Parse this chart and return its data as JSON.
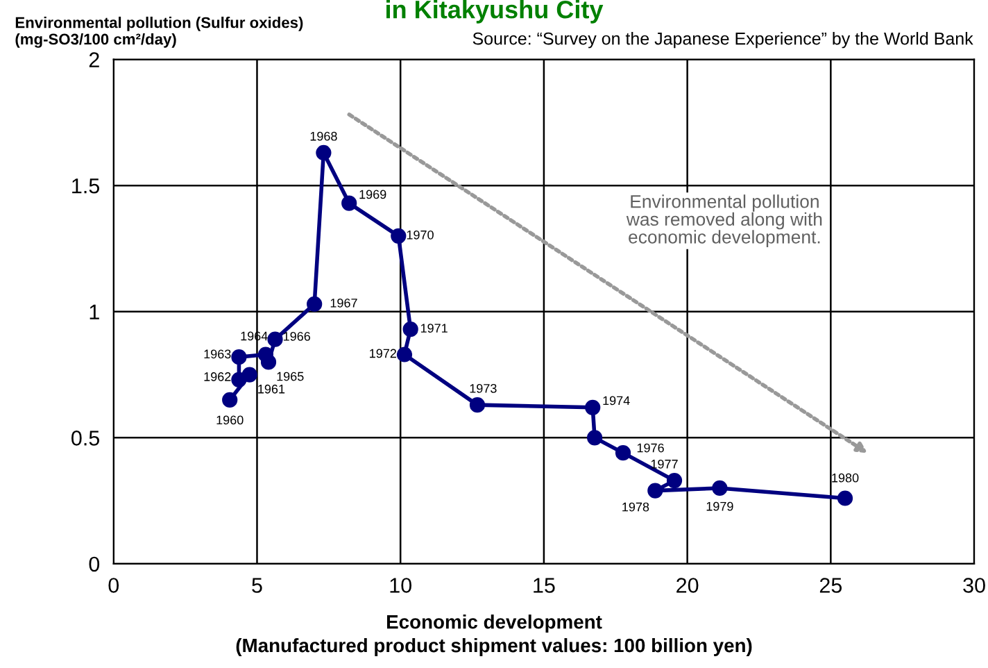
{
  "chart_data": {
    "type": "line",
    "title": "in Kitakyushu City",
    "ylabel": "Environmental pollution (Sulfur oxides)\n(mg-SO3/100 cm²/day)",
    "xlabel": "Economic development\n(Manufactured product shipment values: 100 billion yen)",
    "series": [
      {
        "color": "#000080",
        "x": [
          4.05,
          4.74,
          4.37,
          4.37,
          5.3,
          5.4,
          5.63,
          7.0,
          7.32,
          8.21,
          9.93,
          10.35,
          10.14,
          12.68,
          16.7,
          16.77,
          17.76,
          19.55,
          18.88,
          21.13,
          25.5
        ],
        "values": [
          0.65,
          0.75,
          0.73,
          0.82,
          0.83,
          0.8,
          0.89,
          1.03,
          1.63,
          1.43,
          1.3,
          0.93,
          0.83,
          0.63,
          0.62,
          0.5,
          0.44,
          0.33,
          0.29,
          0.3,
          0.26
        ]
      }
    ],
    "annotations": [
      "Source: “Survey on the Japanese Experience” by the World Bank",
      "Environmental pollution\nwas removed along with\neconomic development.",
      {
        "text": "1960",
        "x": 4.05,
        "y": 0.65
      },
      {
        "text": "1961",
        "x": 4.74,
        "y": 0.75
      },
      {
        "text": "1962",
        "x": 4.37,
        "y": 0.73
      },
      {
        "text": "1963",
        "x": 4.37,
        "y": 0.82
      },
      {
        "text": "1964",
        "x": 5.3,
        "y": 0.83
      },
      {
        "text": "1965",
        "x": 5.4,
        "y": 0.8
      },
      {
        "text": "1966",
        "x": 5.63,
        "y": 0.89
      },
      {
        "text": "1967",
        "x": 7.0,
        "y": 1.03
      },
      {
        "text": "1968",
        "x": 7.32,
        "y": 1.63
      },
      {
        "text": "1969",
        "x": 8.21,
        "y": 1.43
      },
      {
        "text": "1970",
        "x": 9.93,
        "y": 1.3
      },
      {
        "text": "1971",
        "x": 10.35,
        "y": 0.93
      },
      {
        "text": "1972",
        "x": 10.14,
        "y": 0.83
      },
      {
        "text": "1973",
        "x": 12.68,
        "y": 0.63
      },
      {
        "text": "1974",
        "x": 16.7,
        "y": 0.62
      },
      {
        "text": "1976",
        "x": 17.76,
        "y": 0.44
      },
      {
        "text": "1977",
        "x": 19.55,
        "y": 0.33
      },
      {
        "text": "1978",
        "x": 18.88,
        "y": 0.29
      },
      {
        "text": "1979",
        "x": 21.13,
        "y": 0.3
      },
      {
        "text": "1980",
        "x": 25.5,
        "y": 0.26
      }
    ],
    "xlim": [
      0,
      30
    ],
    "xticks": [
      0,
      5,
      10,
      15,
      20,
      25,
      30
    ],
    "ylim": [
      0,
      2
    ],
    "yticks": [
      0,
      0.5,
      1,
      1.5,
      2
    ],
    "grid": true,
    "marker": "circle",
    "line_style": "solid"
  }
}
